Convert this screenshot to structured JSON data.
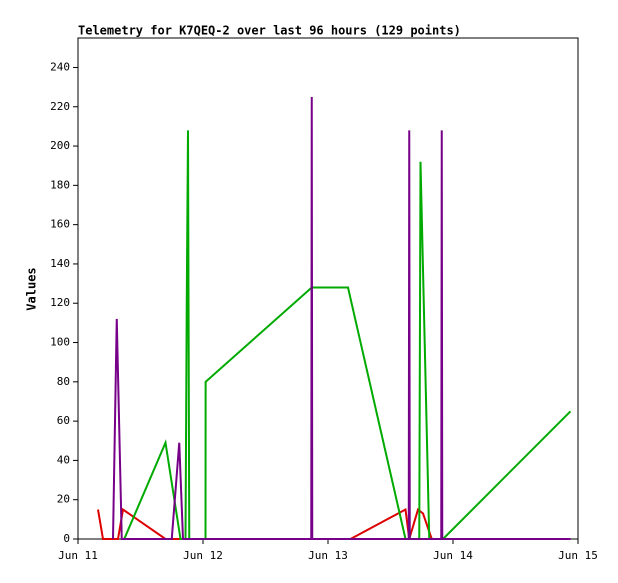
{
  "chart_data": {
    "type": "line",
    "title": "Telemetry for K7QEQ-2 over last 96 hours (129 points)",
    "ylabel": "Values",
    "xlim": [
      0,
      4
    ],
    "xticks": [
      {
        "value": 0,
        "label": "Jun 11"
      },
      {
        "value": 1,
        "label": "Jun 12"
      },
      {
        "value": 2,
        "label": "Jun 13"
      },
      {
        "value": 3,
        "label": "Jun 14"
      },
      {
        "value": 4,
        "label": "Jun 15"
      }
    ],
    "ylim": [
      0,
      255
    ],
    "yticks": [
      0,
      20,
      40,
      60,
      80,
      100,
      120,
      140,
      160,
      180,
      200,
      220,
      240
    ],
    "grid": false,
    "series": [
      {
        "color": "#dd0000",
        "x": [
          0.16,
          0.2,
          0.32,
          0.36,
          0.7,
          1.18,
          2.18,
          2.62,
          2.65,
          2.72,
          2.76,
          2.83,
          3.94
        ],
        "values": [
          15,
          0,
          0,
          15,
          0,
          0,
          0,
          15,
          0,
          15,
          13,
          0,
          0
        ]
      },
      {
        "color": "#00aa00",
        "x": [
          0.37,
          0.7,
          0.82,
          0.86,
          0.87,
          0.88,
          0.89,
          1.02,
          1.021,
          1.87,
          2.16,
          2.62,
          2.73,
          2.74,
          2.81,
          2.92,
          3.94
        ],
        "values": [
          0,
          49,
          0,
          0,
          120,
          208,
          0,
          0,
          80,
          128,
          128,
          0,
          0,
          192,
          0,
          0,
          65
        ]
      },
      {
        "color": "#770088",
        "x": [
          0.28,
          0.31,
          0.35,
          0.75,
          0.81,
          0.84,
          1.866,
          1.87,
          1.874,
          2.646,
          2.65,
          2.654,
          2.906,
          2.91,
          2.914,
          3.94
        ],
        "values": [
          0,
          112,
          0,
          0,
          49,
          0,
          0,
          225,
          0,
          0,
          208,
          0,
          0,
          208,
          0,
          0
        ]
      }
    ]
  }
}
